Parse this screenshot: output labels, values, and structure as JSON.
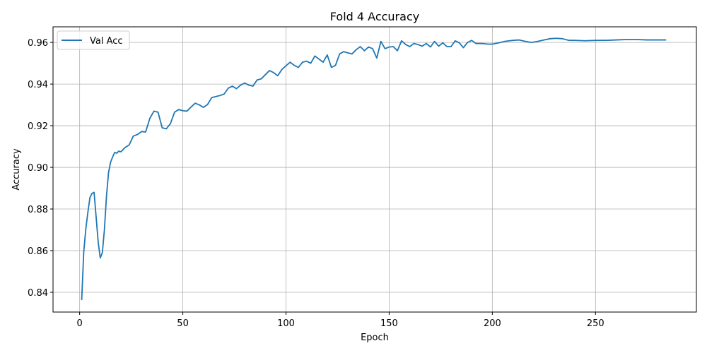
{
  "chart_data": {
    "type": "line",
    "title": "Fold 4 Accuracy",
    "xlabel": "Epoch",
    "ylabel": "Accuracy",
    "xlim": [
      -12.9,
      298.9
    ],
    "ylim": [
      0.8305,
      0.9675
    ],
    "xticks": [
      0,
      50,
      100,
      150,
      200,
      250
    ],
    "yticks": [
      0.84,
      0.86,
      0.88,
      0.9,
      0.92,
      0.94,
      0.96
    ],
    "ytick_labels": [
      "0.84",
      "0.86",
      "0.88",
      "0.90",
      "0.92",
      "0.94",
      "0.96"
    ],
    "grid": true,
    "legend_position": "top-left",
    "series": [
      {
        "name": "Val Acc",
        "color": "#1f77b4",
        "x": [
          1,
          2,
          3,
          4,
          5,
          6,
          7,
          8,
          9,
          10,
          11,
          12,
          13,
          14,
          15,
          16,
          17,
          18,
          19,
          20,
          22,
          24,
          26,
          28,
          30,
          32,
          34,
          36,
          38,
          40,
          42,
          44,
          46,
          48,
          50,
          52,
          54,
          56,
          58,
          60,
          62,
          64,
          66,
          68,
          70,
          72,
          74,
          76,
          78,
          80,
          82,
          84,
          86,
          88,
          90,
          92,
          94,
          96,
          98,
          100,
          102,
          104,
          106,
          108,
          110,
          112,
          114,
          116,
          118,
          120,
          122,
          124,
          126,
          128,
          130,
          132,
          134,
          136,
          138,
          140,
          142,
          144,
          146,
          148,
          150,
          152,
          154,
          156,
          158,
          160,
          162,
          164,
          166,
          168,
          170,
          172,
          174,
          176,
          178,
          180,
          182,
          184,
          186,
          188,
          190,
          192,
          195,
          198,
          200,
          203,
          206,
          210,
          213,
          216,
          219,
          222,
          225,
          228,
          231,
          234,
          237,
          240,
          245,
          250,
          255,
          260,
          265,
          270,
          275,
          280,
          284
        ],
        "y": [
          0.8365,
          0.8595,
          0.8705,
          0.8785,
          0.8855,
          0.8875,
          0.888,
          0.876,
          0.864,
          0.8565,
          0.859,
          0.87,
          0.886,
          0.8975,
          0.9025,
          0.905,
          0.9072,
          0.9068,
          0.9078,
          0.9075,
          0.9095,
          0.9108,
          0.915,
          0.9158,
          0.9172,
          0.917,
          0.9235,
          0.927,
          0.9265,
          0.919,
          0.9185,
          0.921,
          0.9265,
          0.9278,
          0.9272,
          0.927,
          0.929,
          0.9308,
          0.93,
          0.9288,
          0.9302,
          0.9335,
          0.934,
          0.9345,
          0.9352,
          0.938,
          0.939,
          0.9378,
          0.9395,
          0.9405,
          0.9395,
          0.939,
          0.942,
          0.9425,
          0.9445,
          0.9465,
          0.9455,
          0.944,
          0.947,
          0.9488,
          0.9505,
          0.949,
          0.948,
          0.9505,
          0.951,
          0.95,
          0.9535,
          0.952,
          0.9505,
          0.954,
          0.948,
          0.949,
          0.9545,
          0.9556,
          0.955,
          0.9545,
          0.9565,
          0.958,
          0.956,
          0.9578,
          0.957,
          0.9525,
          0.9605,
          0.957,
          0.9578,
          0.958,
          0.956,
          0.9608,
          0.959,
          0.958,
          0.9595,
          0.959,
          0.9582,
          0.9595,
          0.9578,
          0.9605,
          0.9582,
          0.9598,
          0.958,
          0.958,
          0.9608,
          0.9598,
          0.9575,
          0.96,
          0.961,
          0.9595,
          0.9595,
          0.9592,
          0.9592,
          0.9598,
          0.9605,
          0.961,
          0.9612,
          0.9605,
          0.96,
          0.9605,
          0.9612,
          0.9618,
          0.962,
          0.9618,
          0.961,
          0.961,
          0.9608,
          0.961,
          0.961,
          0.9612,
          0.9614,
          0.9614,
          0.9612,
          0.9612,
          0.9612
        ]
      }
    ]
  }
}
